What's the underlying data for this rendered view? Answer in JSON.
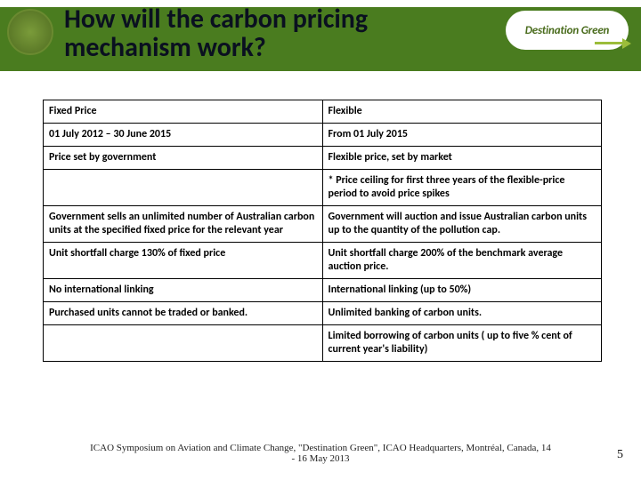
{
  "header": {
    "title": "How will the carbon pricing mechanism work?",
    "badge_text": "Destination Green"
  },
  "table": {
    "columns": [
      "Fixed Price",
      "Flexible"
    ],
    "rows": [
      {
        "left": "01 July 2012 – 30 June 2015",
        "right": "From 01 July 2015",
        "bold": true
      },
      {
        "left": "Price set by government",
        "right": "Flexible price, set by market",
        "bold": true
      },
      {
        "left": "",
        "right": "* Price ceiling for first three years of the flexible-price period to avoid price spikes",
        "bold": true
      },
      {
        "left": "Government sells an unlimited number of Australian carbon units at the specified fixed price for the relevant year",
        "right": "Government will auction and issue Australian carbon units up to the quantity of the pollution cap.",
        "bold": true
      },
      {
        "left": "Unit shortfall charge  130% of fixed price",
        "right": "Unit shortfall charge 200% of the benchmark average auction price.",
        "bold": true
      },
      {
        "left": "No international linking",
        "right": "International linking (up to 50%)",
        "bold": true
      },
      {
        "left": "Purchased units cannot be traded or banked.",
        "right": "Unlimited banking of carbon units.",
        "bold": true
      },
      {
        "left": "",
        "right": "Limited borrowing of carbon units  ( up to five % cent of current year's liability)",
        "bold": true
      }
    ],
    "header_bold": true,
    "border_color": "#000000",
    "font_size": 12
  },
  "footer": {
    "text": "ICAO Symposium on Aviation and Climate Change, \"Destination Green\", ICAO Headquarters, Montréal, Canada, 14 - 16 May 2013",
    "page_number": "5"
  },
  "colors": {
    "header_band": "#4a7c1f",
    "title_color": "#0a1020",
    "badge_text_color": "#4a6c1d",
    "arrow_color": "#9bbd3a",
    "background": "#ffffff"
  }
}
